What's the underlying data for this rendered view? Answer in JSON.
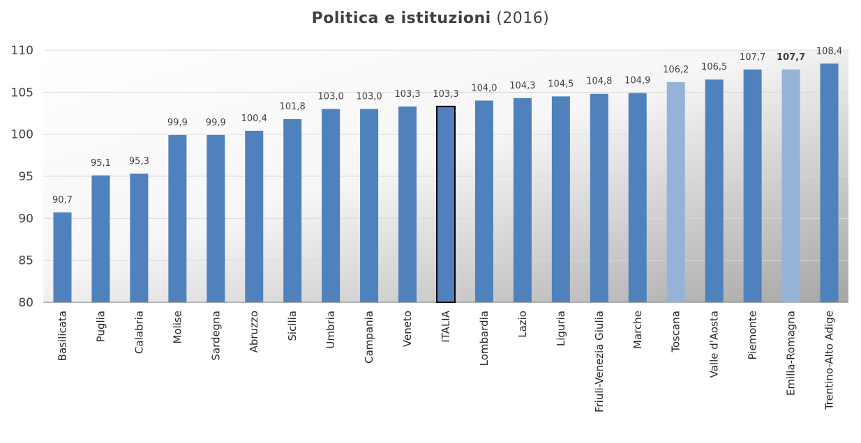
{
  "title": {
    "main": "Politica e istituzioni",
    "year": "(2016)"
  },
  "chart_data": {
    "type": "bar",
    "title": "Politica e istituzioni (2016)",
    "xlabel": "",
    "ylabel": "",
    "ylim": [
      80,
      110
    ],
    "yticks": [
      80,
      85,
      90,
      95,
      100,
      105,
      110
    ],
    "grid": true,
    "legend": "none",
    "categories": [
      "Basilicata",
      "Puglia",
      "Calabria",
      "Molise",
      "Sardegna",
      "Abruzzo",
      "Sicilia",
      "Umbria",
      "Campania",
      "Veneto",
      "ITALIA",
      "Lombardia",
      "Lazio",
      "Liguria",
      "Friuli-Venezia Giulia",
      "Marche",
      "Toscana",
      "Valle d'Aosta",
      "Piemonte",
      "Emilia-Romagna",
      "Trentino-Alto Adige"
    ],
    "values": [
      90.7,
      95.1,
      95.3,
      99.9,
      99.9,
      100.4,
      101.8,
      103.0,
      103.0,
      103.3,
      103.3,
      104.0,
      104.3,
      104.5,
      104.8,
      104.9,
      106.2,
      106.5,
      107.7,
      107.7,
      108.4
    ],
    "value_labels": [
      "90,7",
      "95,1",
      "95,3",
      "99,9",
      "99,9",
      "100,4",
      "101,8",
      "103,0",
      "103,0",
      "103,3",
      "103,3",
      "104,0",
      "104,3",
      "104,5",
      "104,8",
      "104,9",
      "106,2",
      "106,5",
      "107,7",
      "107,7",
      "108,4"
    ],
    "highlight": {
      "ITALIA": "outlined",
      "Toscana": "light",
      "Emilia-Romagna": "light-bold-label"
    },
    "colors": {
      "bar": "#4F81BD",
      "bar_light": "#95B3D7",
      "italia_fill": "#4F81BD",
      "italia_outline": "#000000",
      "grid": "#D9D9D9"
    }
  }
}
